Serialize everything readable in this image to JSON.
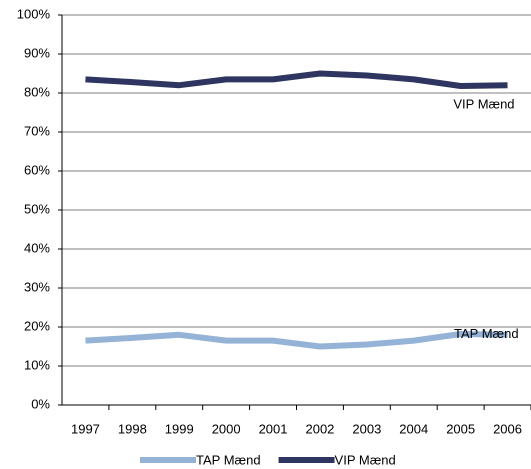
{
  "chart_data": {
    "type": "line",
    "categories": [
      "1997",
      "1998",
      "1999",
      "2000",
      "2001",
      "2002",
      "2003",
      "2004",
      "2005",
      "2006"
    ],
    "series": [
      {
        "name": "TAP Mænd",
        "color": "#95b3d7",
        "values": [
          16.5,
          17.2,
          18,
          16.5,
          16.5,
          15,
          15.5,
          16.5,
          18.2,
          18
        ]
      },
      {
        "name": "VIP Mænd",
        "color": "#2e3561",
        "values": [
          83.5,
          82.8,
          82,
          83.5,
          83.5,
          85,
          84.5,
          83.5,
          81.8,
          82
        ]
      }
    ],
    "annotations": [
      "VIP Mænd",
      "TAP Mænd"
    ],
    "ylim": [
      0,
      100
    ],
    "yticks": [
      {
        "value": 0,
        "label": "0%"
      },
      {
        "value": 10,
        "label": "10%"
      },
      {
        "value": 20,
        "label": "20%"
      },
      {
        "value": 30,
        "label": "30%"
      },
      {
        "value": 40,
        "label": "40%"
      },
      {
        "value": 50,
        "label": "50%"
      },
      {
        "value": 60,
        "label": "60%"
      },
      {
        "value": 70,
        "label": "70%"
      },
      {
        "value": 80,
        "label": "80%"
      },
      {
        "value": 90,
        "label": "90%"
      },
      {
        "value": 100,
        "label": "100%"
      }
    ],
    "grid": true,
    "legend": "bottom"
  }
}
